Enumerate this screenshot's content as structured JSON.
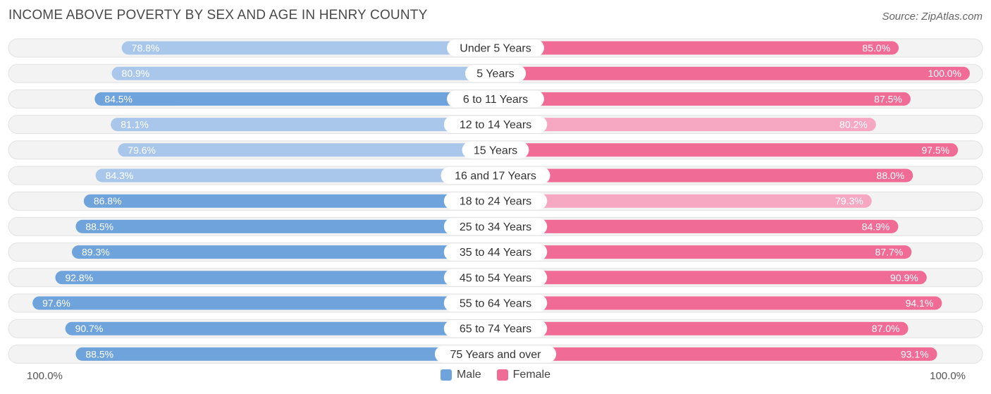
{
  "title": "INCOME ABOVE POVERTY BY SEX AND AGE IN HENRY COUNTY",
  "source": "Source: ZipAtlas.com",
  "axis": {
    "left_label": "100.0%",
    "right_label": "100.0%"
  },
  "legend": {
    "male": "Male",
    "female": "Female"
  },
  "colors": {
    "male_strong": "#6fa3dc",
    "male_light": "#a9c7ea",
    "female_strong": "#f06b96",
    "female_light": "#f6a8c2",
    "track": "#eeeeee"
  },
  "chart_data": {
    "type": "bar",
    "orientation": "horizontal-diverging",
    "xlim": [
      0,
      100
    ],
    "categories": [
      "Under 5 Years",
      "5 Years",
      "6 to 11 Years",
      "12 to 14 Years",
      "15 Years",
      "16 and 17 Years",
      "18 to 24 Years",
      "25 to 34 Years",
      "35 to 44 Years",
      "45 to 54 Years",
      "55 to 64 Years",
      "65 to 74 Years",
      "75 Years and over"
    ],
    "series": [
      {
        "name": "Male",
        "values": [
          78.8,
          80.9,
          84.5,
          81.1,
          79.6,
          84.3,
          86.8,
          88.5,
          89.3,
          92.8,
          97.6,
          90.7,
          88.5
        ],
        "labels": [
          "78.8%",
          "80.9%",
          "84.5%",
          "81.1%",
          "79.6%",
          "84.3%",
          "86.8%",
          "88.5%",
          "89.3%",
          "92.8%",
          "97.6%",
          "90.7%",
          "88.5%"
        ]
      },
      {
        "name": "Female",
        "values": [
          85.0,
          100.0,
          87.5,
          80.2,
          97.5,
          88.0,
          79.3,
          84.9,
          87.7,
          90.9,
          94.1,
          87.0,
          93.1
        ],
        "labels": [
          "85.0%",
          "100.0%",
          "87.5%",
          "80.2%",
          "97.5%",
          "88.0%",
          "79.3%",
          "84.9%",
          "87.7%",
          "90.9%",
          "94.1%",
          "87.0%",
          "93.1%"
        ]
      }
    ]
  }
}
